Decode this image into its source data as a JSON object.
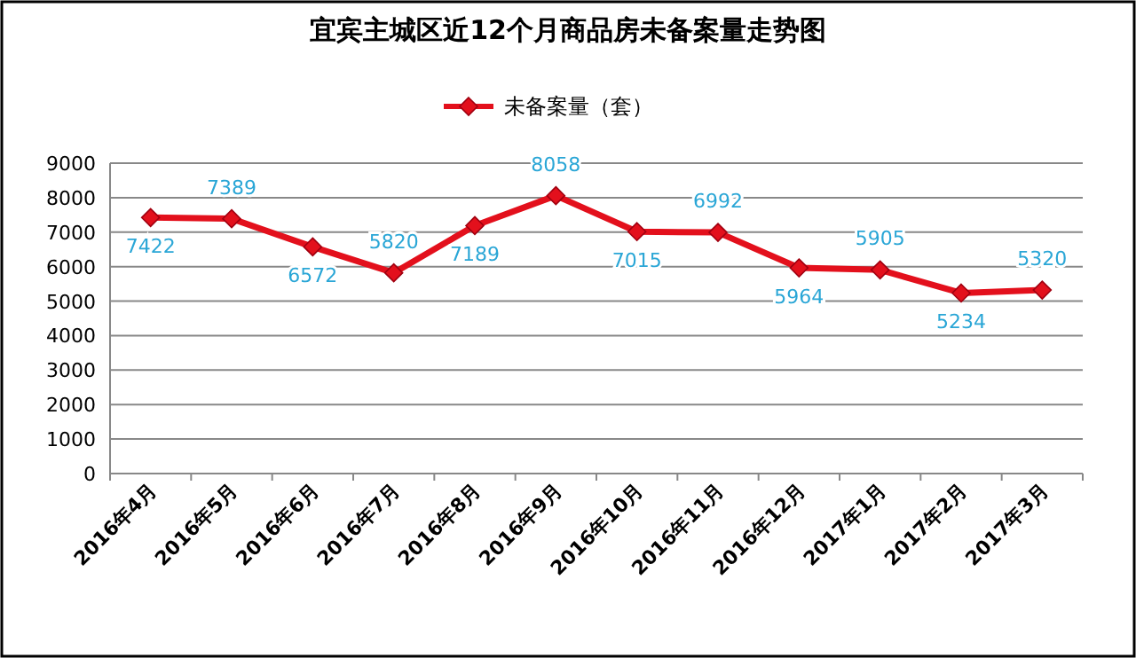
{
  "chart_data": {
    "type": "line",
    "title": "宜宾主城区近12个月商品房未备案量走势图",
    "categories": [
      "2016年4月",
      "2016年5月",
      "2016年6月",
      "2016年7月",
      "2016年8月",
      "2016年9月",
      "2016年10月",
      "2016年11月",
      "2016年12月",
      "2017年1月",
      "2017年2月",
      "2017年3月"
    ],
    "series": [
      {
        "name": "未备案量（套）",
        "color": "#e3101c",
        "values": [
          7422,
          7389,
          6572,
          5820,
          7189,
          8058,
          7015,
          6992,
          5964,
          5905,
          5234,
          5320
        ]
      }
    ],
    "ylim": [
      0,
      9000
    ],
    "yticks": [
      0,
      1000,
      2000,
      3000,
      4000,
      5000,
      6000,
      7000,
      8000,
      9000
    ],
    "grid": "y",
    "legend": "top",
    "marker": "diamond",
    "data_labels": true
  }
}
